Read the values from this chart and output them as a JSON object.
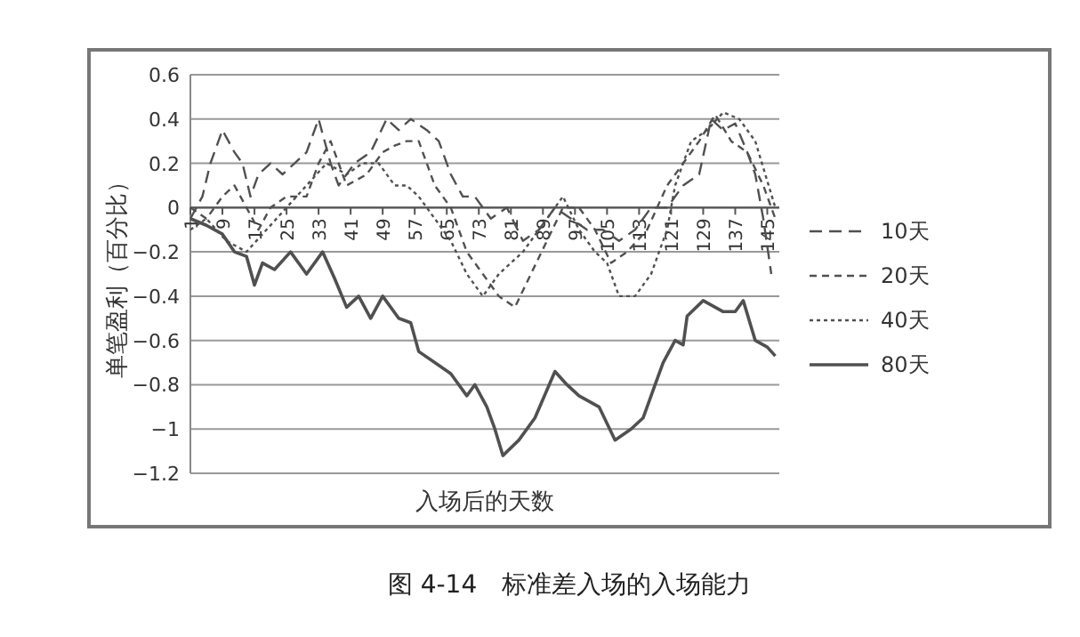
{
  "chart_data": {
    "type": "line",
    "xlabel": "入场后的天数",
    "ylabel": "单笔盈利（百分比）",
    "annotations": [
      "图 4-14　标准差入场的入场能力"
    ],
    "xlim": [
      1,
      148
    ],
    "xticks": [
      1,
      9,
      17,
      25,
      33,
      41,
      49,
      57,
      65,
      73,
      81,
      89,
      97,
      105,
      113,
      121,
      129,
      137,
      145
    ],
    "ylim": [
      -1.2,
      0.6
    ],
    "yticks": [
      0.6,
      0.4,
      0.2,
      0,
      -0.2,
      -0.4,
      -0.6,
      -0.8,
      -1,
      -1.2
    ],
    "grid": "y",
    "legend": "right",
    "series": [
      {
        "name": "10天",
        "color": "#505050",
        "line_style": "longdash",
        "x": [
          1,
          4,
          6,
          9,
          12,
          14,
          16,
          18,
          21,
          24,
          27,
          30,
          33,
          36,
          38,
          42,
          46,
          50,
          53,
          56,
          60,
          63,
          66,
          69,
          72,
          76,
          80,
          84,
          88,
          92,
          96,
          100,
          104,
          108,
          112,
          116,
          120,
          124,
          128,
          131,
          134,
          137,
          140,
          142,
          144,
          146
        ],
        "values": [
          -0.05,
          0.05,
          0.2,
          0.35,
          0.25,
          0.2,
          0.05,
          0.15,
          0.2,
          0.15,
          0.2,
          0.25,
          0.4,
          0.2,
          0.1,
          0.2,
          0.25,
          0.4,
          0.35,
          0.4,
          0.35,
          0.3,
          0.15,
          0.05,
          0.05,
          -0.05,
          0.0,
          -0.15,
          -0.1,
          0.0,
          -0.05,
          -0.1,
          -0.1,
          -0.15,
          -0.1,
          0.0,
          0.0,
          0.1,
          0.15,
          0.4,
          0.35,
          0.38,
          0.25,
          0.15,
          -0.05,
          -0.3
        ]
      },
      {
        "name": "20天",
        "color": "#505050",
        "line_style": "dashed",
        "x": [
          1,
          5,
          9,
          12,
          15,
          18,
          21,
          25,
          30,
          33,
          36,
          40,
          45,
          49,
          52,
          55,
          58,
          62,
          66,
          70,
          74,
          78,
          82,
          86,
          90,
          94,
          98,
          102,
          106,
          110,
          115,
          120,
          124,
          128,
          132,
          136,
          140,
          144,
          147
        ],
        "values": [
          0.0,
          -0.05,
          0.05,
          0.1,
          0.0,
          -0.1,
          0.0,
          0.05,
          0.05,
          0.2,
          0.3,
          0.1,
          0.15,
          0.25,
          0.28,
          0.3,
          0.3,
          0.1,
          0.0,
          -0.2,
          -0.3,
          -0.4,
          -0.45,
          -0.3,
          -0.15,
          0.0,
          0.0,
          -0.1,
          -0.25,
          -0.2,
          -0.1,
          0.1,
          0.2,
          0.3,
          0.42,
          0.3,
          0.25,
          0.1,
          -0.05
        ]
      },
      {
        "name": "40天",
        "color": "#505050",
        "line_style": "dotted",
        "x": [
          1,
          5,
          10,
          15,
          20,
          25,
          30,
          35,
          40,
          44,
          48,
          52,
          55,
          58,
          62,
          66,
          70,
          74,
          78,
          84,
          88,
          92,
          94,
          98,
          102,
          105,
          108,
          112,
          116,
          120,
          122,
          126,
          130,
          134,
          138,
          142,
          147
        ],
        "values": [
          -0.1,
          -0.05,
          -0.15,
          -0.2,
          -0.1,
          0.0,
          0.1,
          0.2,
          0.15,
          0.2,
          0.2,
          0.1,
          0.1,
          0.05,
          -0.05,
          -0.15,
          -0.3,
          -0.4,
          -0.3,
          -0.2,
          -0.1,
          0.0,
          0.05,
          -0.1,
          -0.2,
          -0.25,
          -0.4,
          -0.4,
          -0.3,
          -0.1,
          0.1,
          0.3,
          0.35,
          0.43,
          0.4,
          0.3,
          0.0
        ]
      },
      {
        "name": "80天",
        "color": "#505050",
        "line_style": "solid",
        "x": [
          1,
          5,
          9,
          12,
          15,
          17,
          19,
          22,
          26,
          30,
          34,
          37,
          40,
          43,
          46,
          49,
          53,
          56,
          58,
          62,
          66,
          70,
          72,
          75,
          77,
          79,
          83,
          87,
          92,
          95,
          98,
          103,
          107,
          111,
          114,
          117,
          119,
          122,
          124,
          125,
          129,
          134,
          137,
          139,
          142,
          145,
          147
        ],
        "values": [
          -0.05,
          -0.08,
          -0.12,
          -0.2,
          -0.22,
          -0.35,
          -0.25,
          -0.28,
          -0.2,
          -0.3,
          -0.2,
          -0.32,
          -0.45,
          -0.4,
          -0.5,
          -0.4,
          -0.5,
          -0.52,
          -0.65,
          -0.7,
          -0.75,
          -0.85,
          -0.8,
          -0.9,
          -1.0,
          -1.12,
          -1.05,
          -0.95,
          -0.74,
          -0.8,
          -0.85,
          -0.9,
          -1.05,
          -1.0,
          -0.95,
          -0.8,
          -0.7,
          -0.6,
          -0.62,
          -0.49,
          -0.42,
          -0.47,
          -0.47,
          -0.42,
          -0.6,
          -0.63,
          -0.67
        ]
      }
    ]
  }
}
